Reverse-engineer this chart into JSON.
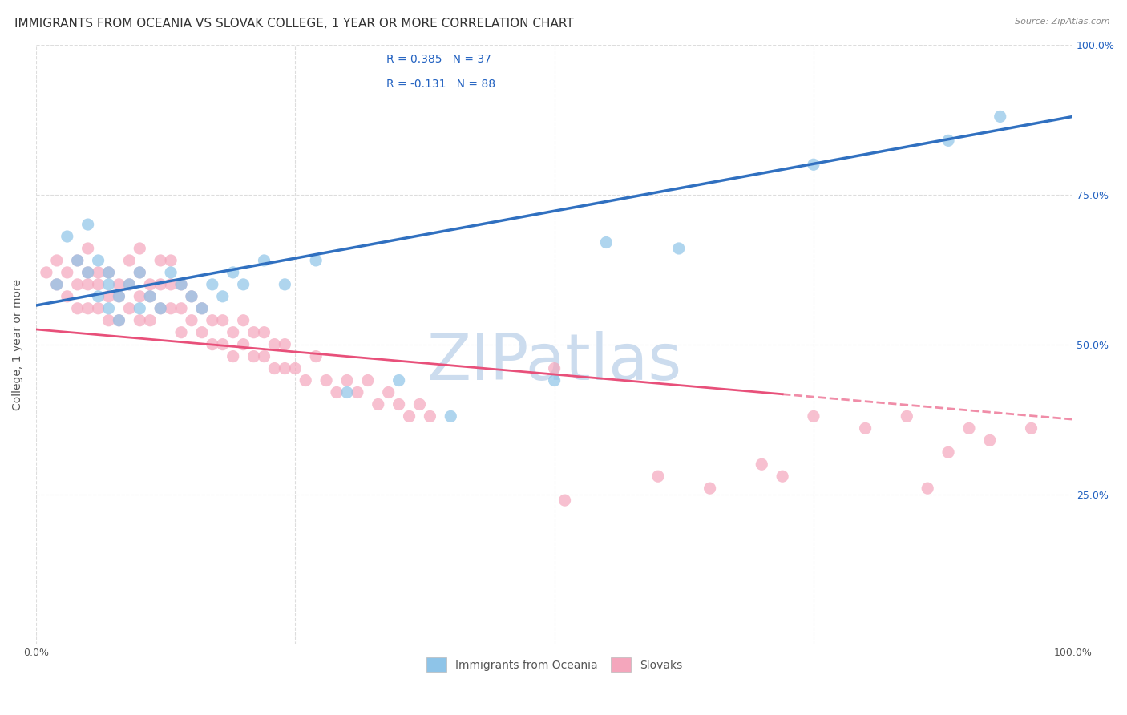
{
  "title": "IMMIGRANTS FROM OCEANIA VS SLOVAK COLLEGE, 1 YEAR OR MORE CORRELATION CHART",
  "source": "Source: ZipAtlas.com",
  "ylabel": "College, 1 year or more",
  "xlim": [
    0,
    1.0
  ],
  "ylim": [
    0,
    1.0
  ],
  "ytick_positions": [
    0.0,
    0.25,
    0.5,
    0.75,
    1.0
  ],
  "right_ytick_labels": [
    "100.0%",
    "75.0%",
    "50.0%",
    "25.0%"
  ],
  "right_ytick_positions": [
    1.0,
    0.75,
    0.5,
    0.25
  ],
  "legend_r1": "R = 0.385",
  "legend_n1": "N = 37",
  "legend_r2": "R = -0.131",
  "legend_n2": "N = 88",
  "color_blue": "#8ec4e8",
  "color_pink": "#f4a6bc",
  "color_blue_line": "#3070c0",
  "color_pink_line": "#e8507a",
  "color_text_blue": "#2060c0",
  "watermark": "ZIPatlas",
  "blue_scatter_x": [
    0.02,
    0.03,
    0.04,
    0.05,
    0.05,
    0.06,
    0.06,
    0.07,
    0.07,
    0.07,
    0.08,
    0.08,
    0.09,
    0.1,
    0.1,
    0.11,
    0.12,
    0.13,
    0.14,
    0.15,
    0.16,
    0.17,
    0.18,
    0.19,
    0.2,
    0.22,
    0.24,
    0.27,
    0.3,
    0.35,
    0.4,
    0.5,
    0.55,
    0.62,
    0.75,
    0.88,
    0.93
  ],
  "blue_scatter_y": [
    0.6,
    0.68,
    0.64,
    0.7,
    0.62,
    0.58,
    0.64,
    0.6,
    0.56,
    0.62,
    0.58,
    0.54,
    0.6,
    0.62,
    0.56,
    0.58,
    0.56,
    0.62,
    0.6,
    0.58,
    0.56,
    0.6,
    0.58,
    0.62,
    0.6,
    0.64,
    0.6,
    0.64,
    0.42,
    0.44,
    0.38,
    0.44,
    0.67,
    0.66,
    0.8,
    0.84,
    0.88
  ],
  "pink_scatter_x": [
    0.01,
    0.02,
    0.02,
    0.03,
    0.03,
    0.04,
    0.04,
    0.04,
    0.05,
    0.05,
    0.05,
    0.05,
    0.06,
    0.06,
    0.06,
    0.07,
    0.07,
    0.07,
    0.08,
    0.08,
    0.08,
    0.09,
    0.09,
    0.09,
    0.1,
    0.1,
    0.1,
    0.1,
    0.11,
    0.11,
    0.11,
    0.12,
    0.12,
    0.12,
    0.13,
    0.13,
    0.13,
    0.14,
    0.14,
    0.14,
    0.15,
    0.15,
    0.16,
    0.16,
    0.17,
    0.17,
    0.18,
    0.18,
    0.19,
    0.19,
    0.2,
    0.2,
    0.21,
    0.21,
    0.22,
    0.22,
    0.23,
    0.23,
    0.24,
    0.24,
    0.25,
    0.26,
    0.27,
    0.28,
    0.29,
    0.3,
    0.31,
    0.32,
    0.33,
    0.34,
    0.35,
    0.36,
    0.37,
    0.38,
    0.5,
    0.51,
    0.6,
    0.65,
    0.7,
    0.72,
    0.75,
    0.8,
    0.84,
    0.86,
    0.88,
    0.9,
    0.92,
    0.96
  ],
  "pink_scatter_y": [
    0.62,
    0.6,
    0.64,
    0.58,
    0.62,
    0.6,
    0.56,
    0.64,
    0.6,
    0.56,
    0.62,
    0.66,
    0.6,
    0.56,
    0.62,
    0.58,
    0.54,
    0.62,
    0.58,
    0.54,
    0.6,
    0.56,
    0.6,
    0.64,
    0.58,
    0.54,
    0.62,
    0.66,
    0.58,
    0.54,
    0.6,
    0.56,
    0.6,
    0.64,
    0.56,
    0.6,
    0.64,
    0.56,
    0.52,
    0.6,
    0.54,
    0.58,
    0.52,
    0.56,
    0.5,
    0.54,
    0.5,
    0.54,
    0.48,
    0.52,
    0.5,
    0.54,
    0.48,
    0.52,
    0.48,
    0.52,
    0.46,
    0.5,
    0.46,
    0.5,
    0.46,
    0.44,
    0.48,
    0.44,
    0.42,
    0.44,
    0.42,
    0.44,
    0.4,
    0.42,
    0.4,
    0.38,
    0.4,
    0.38,
    0.46,
    0.24,
    0.28,
    0.26,
    0.3,
    0.28,
    0.38,
    0.36,
    0.38,
    0.26,
    0.32,
    0.36,
    0.34,
    0.36
  ],
  "blue_line_x0": 0.0,
  "blue_line_x1": 1.0,
  "blue_line_y0": 0.565,
  "blue_line_y1": 0.88,
  "pink_line_x0": 0.0,
  "pink_line_x1": 1.0,
  "pink_line_y0": 0.525,
  "pink_line_y1": 0.375,
  "pink_line_solid_end": 0.72,
  "background_color": "#ffffff",
  "grid_color": "#dddddd",
  "title_fontsize": 11,
  "axis_fontsize": 10,
  "tick_fontsize": 9,
  "watermark_color": "#ccdcee",
  "watermark_fontsize": 58
}
